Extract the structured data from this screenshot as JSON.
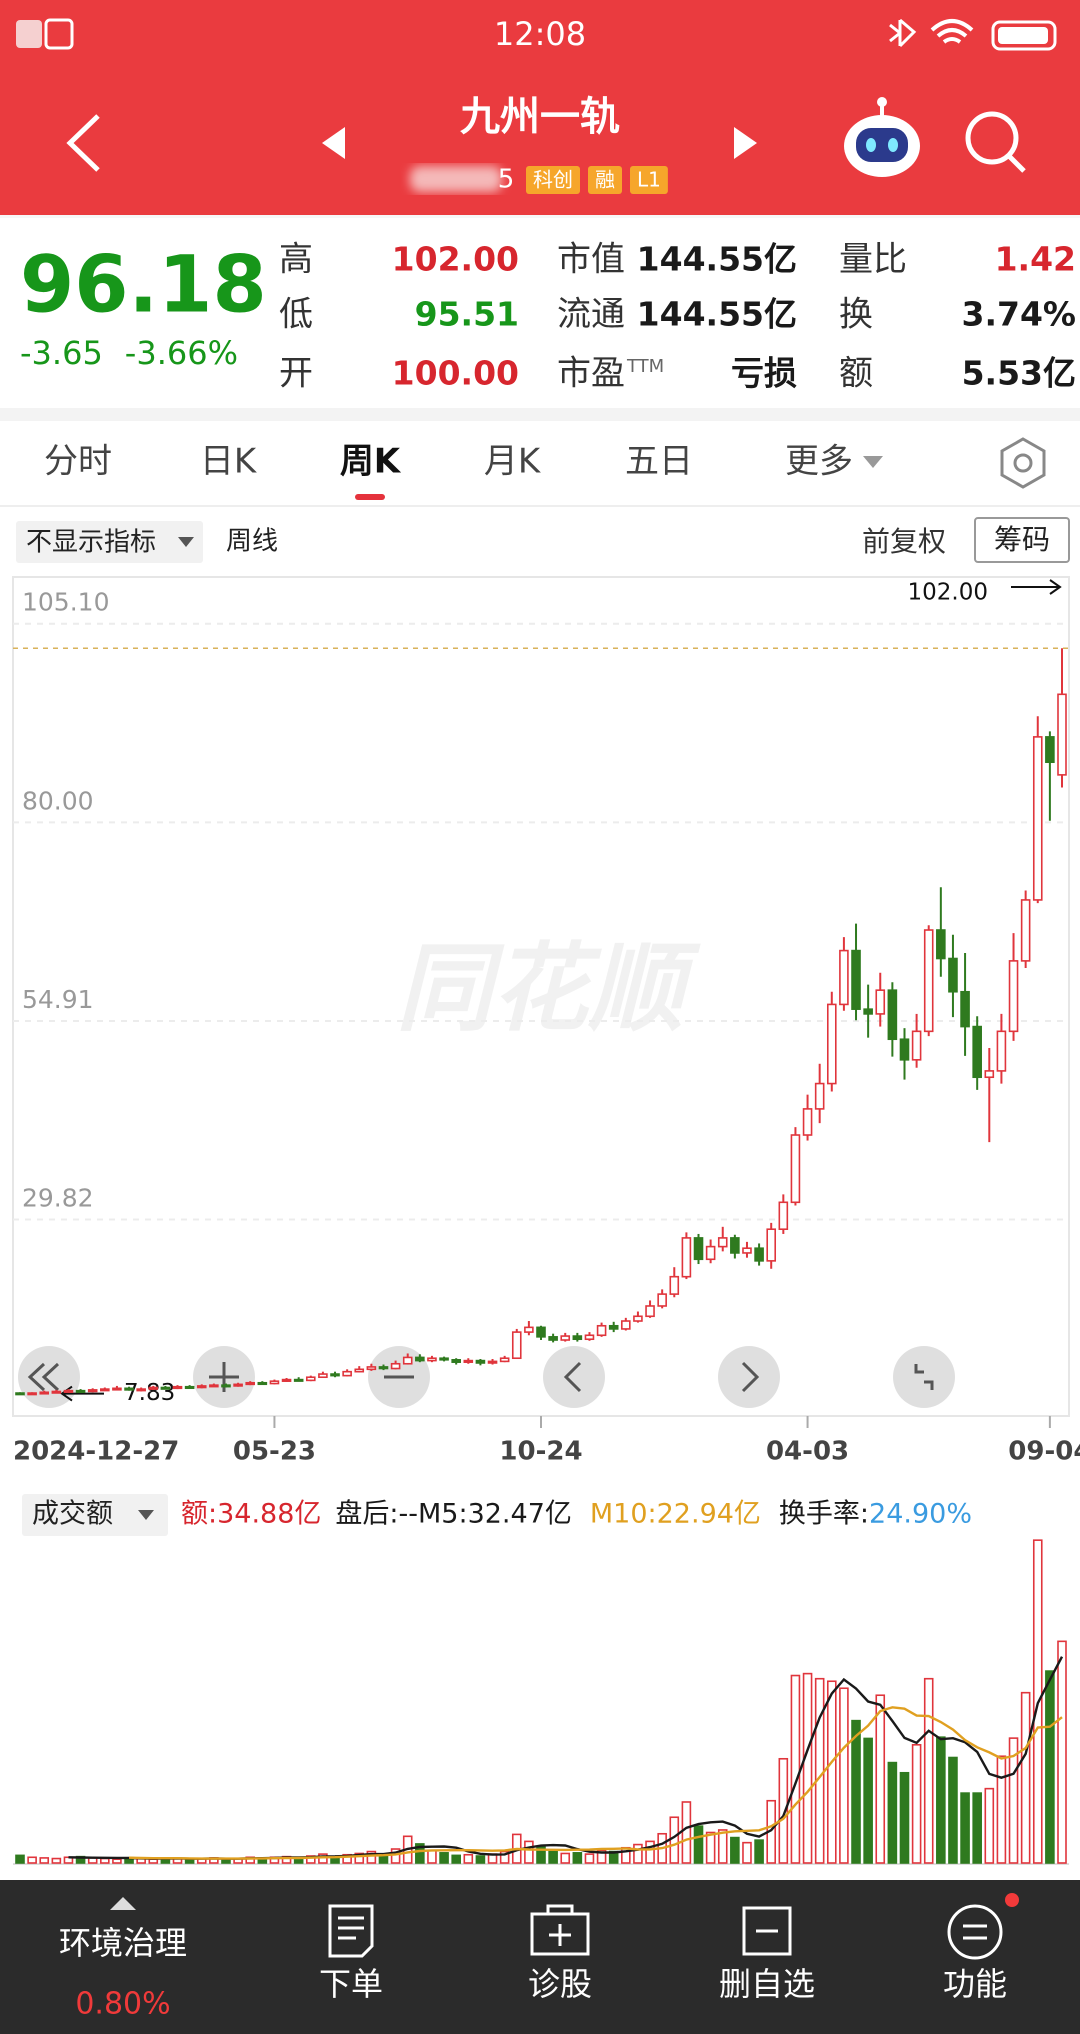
{
  "status_bar": {
    "time": "12:08"
  },
  "header": {
    "title": "九州一轨",
    "code": "5",
    "tags": [
      "科创",
      "融",
      "L1"
    ]
  },
  "quote": {
    "price": "96.18",
    "change": "-3.65",
    "change_pct": "-3.66%",
    "fields": [
      {
        "label": "高",
        "value": "102.00",
        "color": "#d7262e"
      },
      {
        "label": "低",
        "value": "95.51",
        "color": "#17961a"
      },
      {
        "label": "开",
        "value": "100.00",
        "color": "#d7262e"
      },
      {
        "label": "市值",
        "value": "144.55亿",
        "color": "#1a1a1a"
      },
      {
        "label": "流通",
        "value": "144.55亿",
        "color": "#1a1a1a"
      },
      {
        "label": "市盈",
        "sup": "TTM",
        "value": "亏损",
        "color": "#1a1a1a"
      },
      {
        "label": "量比",
        "value": "1.42",
        "color": "#d7262e"
      },
      {
        "label": "换",
        "value": "3.74%",
        "color": "#1a1a1a"
      },
      {
        "label": "额",
        "value": "5.53亿",
        "color": "#1a1a1a"
      }
    ]
  },
  "tabs": [
    "分时",
    "日K",
    "周K",
    "月K",
    "五日",
    "更多"
  ],
  "active_tab": "周K",
  "toolbar": {
    "indicator": "不显示指标",
    "period": "周线",
    "adjust": "前复权",
    "chips": "筹码"
  },
  "chart_data": [
    {
      "type": "candlestick",
      "watermark": "同花顺",
      "up_color": "#e0353c",
      "down_color": "#2f7a1f",
      "ylim": [
        5,
        111
      ],
      "yticks": [
        {
          "value": 105.1,
          "label": "105.10"
        },
        {
          "value": 80,
          "label": "80.00"
        },
        54.91,
        29.82
      ],
      "annotations": [
        {
          "value": 102,
          "label": "102.00"
        },
        {
          "value": 7.83,
          "label": "7.83"
        }
      ],
      "categories": [
        "2024-12-27",
        null,
        null,
        null,
        null,
        null,
        null,
        null,
        null,
        null,
        null,
        null,
        null,
        null,
        null,
        null,
        null,
        null,
        null,
        null,
        null,
        "05-23",
        null,
        null,
        null,
        null,
        null,
        null,
        null,
        null,
        null,
        null,
        null,
        null,
        null,
        null,
        null,
        null,
        null,
        null,
        null,
        null,
        null,
        "10-24",
        null,
        null,
        null,
        null,
        null,
        null,
        null,
        null,
        null,
        null,
        null,
        null,
        null,
        null,
        null,
        null,
        null,
        null,
        null,
        null,
        null,
        "04-03",
        null,
        null,
        null,
        null,
        null,
        null,
        null,
        null,
        null,
        null,
        null,
        null,
        null,
        null,
        null,
        null,
        null,
        null,
        null,
        "09-04"
      ],
      "ohlc": [
        [
          7.9,
          7.8,
          8.0,
          7.7
        ],
        [
          7.8,
          7.9,
          8.0,
          7.7
        ],
        [
          7.9,
          8.0,
          8.2,
          7.8
        ],
        [
          8.0,
          8.1,
          8.3,
          7.9
        ],
        [
          8.1,
          8.2,
          8.4,
          8.0
        ],
        [
          8.2,
          8.1,
          8.4,
          7.9
        ],
        [
          8.1,
          8.3,
          8.5,
          8.0
        ],
        [
          8.3,
          8.4,
          8.6,
          8.2
        ],
        [
          8.4,
          8.5,
          8.8,
          8.3
        ],
        [
          8.5,
          8.3,
          8.7,
          8.2
        ],
        [
          8.3,
          8.4,
          8.6,
          8.1
        ],
        [
          8.4,
          8.6,
          8.8,
          8.3
        ],
        [
          8.6,
          8.5,
          8.8,
          8.4
        ],
        [
          8.5,
          8.7,
          8.9,
          8.4
        ],
        [
          8.7,
          8.6,
          8.9,
          8.5
        ],
        [
          8.6,
          8.8,
          9.0,
          8.5
        ],
        [
          8.8,
          8.9,
          9.1,
          8.7
        ],
        [
          8.9,
          8.8,
          9.1,
          8.6
        ],
        [
          8.8,
          9.0,
          9.2,
          8.7
        ],
        [
          9.0,
          9.2,
          9.4,
          8.9
        ],
        [
          9.2,
          9.1,
          9.4,
          9.0
        ],
        [
          9.1,
          9.4,
          9.6,
          9.0
        ],
        [
          9.4,
          9.6,
          9.8,
          9.3
        ],
        [
          9.6,
          9.5,
          9.9,
          9.4
        ],
        [
          9.5,
          9.9,
          10.1,
          9.4
        ],
        [
          9.9,
          10.3,
          10.6,
          9.8
        ],
        [
          10.3,
          10.1,
          10.6,
          9.9
        ],
        [
          10.1,
          10.6,
          10.9,
          10.0
        ],
        [
          10.6,
          10.9,
          11.3,
          10.5
        ],
        [
          10.9,
          11.2,
          11.6,
          10.7
        ],
        [
          11.2,
          11.0,
          11.5,
          10.8
        ],
        [
          11.0,
          11.6,
          12.0,
          10.9
        ],
        [
          11.6,
          12.4,
          12.9,
          11.5
        ],
        [
          12.4,
          12.0,
          12.8,
          11.8
        ],
        [
          12.0,
          12.3,
          12.6,
          11.8
        ],
        [
          12.3,
          12.1,
          12.5,
          11.9
        ],
        [
          12.1,
          11.8,
          12.3,
          11.5
        ],
        [
          11.8,
          12.0,
          12.3,
          11.6
        ],
        [
          12.0,
          11.7,
          12.2,
          11.4
        ],
        [
          11.7,
          11.9,
          12.2,
          11.5
        ],
        [
          11.9,
          12.3,
          12.6,
          11.8
        ],
        [
          12.3,
          15.6,
          16.0,
          12.2
        ],
        [
          15.6,
          16.2,
          17.0,
          15.2
        ],
        [
          16.2,
          15.0,
          16.4,
          14.6
        ],
        [
          15.0,
          14.6,
          15.4,
          14.3
        ],
        [
          14.6,
          15.1,
          15.5,
          14.4
        ],
        [
          15.1,
          14.7,
          15.5,
          14.4
        ],
        [
          14.7,
          15.2,
          15.6,
          14.5
        ],
        [
          15.2,
          16.4,
          16.8,
          15.0
        ],
        [
          16.4,
          16.0,
          16.9,
          15.6
        ],
        [
          16.0,
          17.0,
          17.4,
          15.8
        ],
        [
          17.0,
          17.6,
          18.2,
          16.8
        ],
        [
          17.6,
          18.9,
          19.6,
          17.4
        ],
        [
          18.9,
          20.4,
          21.0,
          18.6
        ],
        [
          20.4,
          22.6,
          23.8,
          20.0
        ],
        [
          22.6,
          27.5,
          28.2,
          22.3
        ],
        [
          27.5,
          24.8,
          28.0,
          24.2
        ],
        [
          24.8,
          26.4,
          27.3,
          24.3
        ],
        [
          26.4,
          27.5,
          28.9,
          25.8
        ],
        [
          27.5,
          25.6,
          27.9,
          24.9
        ],
        [
          25.6,
          26.2,
          27.0,
          25.0
        ],
        [
          26.2,
          24.6,
          26.8,
          24.0
        ],
        [
          24.6,
          28.6,
          29.4,
          23.6
        ],
        [
          28.6,
          32.0,
          33.0,
          28.0
        ],
        [
          32.0,
          40.5,
          41.5,
          31.6
        ],
        [
          40.5,
          43.8,
          45.6,
          39.8
        ],
        [
          43.8,
          47.0,
          49.5,
          42.0
        ],
        [
          47.0,
          57.0,
          58.6,
          46.0
        ],
        [
          57.0,
          63.8,
          65.5,
          56.2
        ],
        [
          63.8,
          56.4,
          67.2,
          55.0
        ],
        [
          56.4,
          55.8,
          59.5,
          52.8
        ],
        [
          55.8,
          58.8,
          61.0,
          54.2
        ],
        [
          58.8,
          52.6,
          59.8,
          50.4
        ],
        [
          52.6,
          50.0,
          54.0,
          47.5
        ],
        [
          50.0,
          53.6,
          55.8,
          49.0
        ],
        [
          53.6,
          66.4,
          67.0,
          53.0
        ],
        [
          66.4,
          62.8,
          71.8,
          60.5
        ],
        [
          62.8,
          58.6,
          65.8,
          55.4
        ],
        [
          58.6,
          54.2,
          63.5,
          50.5
        ],
        [
          54.2,
          47.8,
          55.5,
          46.2
        ],
        [
          47.8,
          48.6,
          51.5,
          39.6
        ],
        [
          48.6,
          53.6,
          55.8,
          47.0
        ],
        [
          53.6,
          62.5,
          66.0,
          52.4
        ],
        [
          62.5,
          70.2,
          71.4,
          61.6
        ],
        [
          70.2,
          90.8,
          93.4,
          69.8
        ],
        [
          90.8,
          87.6,
          91.5,
          80.2
        ],
        [
          86.0,
          96.18,
          102.0,
          84.4
        ]
      ]
    },
    {
      "type": "bar",
      "title": "成交额",
      "ylim": [
        0,
        52.4
      ],
      "readouts": [
        {
          "text": "额:34.88亿",
          "color": "#d7262e"
        },
        {
          "text": "盘后:--",
          "color": "#1a1a1a"
        },
        {
          "text": "M5:32.47亿",
          "color": "#1a1a1a"
        },
        {
          "text": "M10:22.94亿",
          "color": "#e0a020"
        },
        {
          "text": "换手率:",
          "color": "#1a1a1a"
        },
        {
          "text": "24.90%",
          "color": "#3a9be0"
        }
      ],
      "values": [
        1.2,
        0.9,
        0.8,
        0.7,
        0.9,
        1.0,
        0.8,
        0.7,
        0.6,
        0.8,
        0.7,
        0.6,
        0.8,
        0.7,
        0.6,
        0.7,
        0.8,
        0.6,
        0.7,
        0.9,
        0.8,
        0.9,
        1.0,
        0.8,
        1.1,
        1.4,
        1.0,
        1.3,
        1.5,
        1.8,
        1.4,
        2.2,
        4.2,
        3.0,
        2.0,
        1.6,
        1.2,
        1.3,
        1.1,
        1.4,
        1.8,
        4.5,
        3.4,
        2.6,
        1.8,
        1.5,
        1.6,
        1.4,
        2.0,
        1.8,
        2.4,
        2.9,
        3.4,
        4.6,
        7.2,
        9.6,
        5.8,
        4.8,
        5.2,
        4.0,
        3.2,
        3.6,
        9.8,
        16.4,
        29.5,
        29.8,
        29.0,
        28.6,
        27.5,
        22.4,
        19.6,
        26.4,
        15.8,
        14.2,
        18.6,
        29.0,
        19.8,
        16.6,
        11.0,
        11.0,
        11.7,
        16.8,
        19.65,
        26.8,
        50.8,
        30.2,
        34.88
      ],
      "series": [
        {
          "name": "M5",
          "color": "#1a1a1a",
          "values": [
            null,
            null,
            null,
            null,
            0.9,
            0.86,
            0.84,
            0.82,
            0.8,
            0.78,
            0.72,
            0.68,
            0.7,
            0.72,
            0.68,
            0.68,
            0.72,
            0.68,
            0.68,
            0.74,
            0.76,
            0.78,
            0.86,
            0.88,
            0.92,
            1.04,
            1.06,
            1.12,
            1.26,
            1.4,
            1.4,
            1.64,
            2.22,
            2.52,
            2.56,
            2.6,
            2.4,
            1.82,
            1.44,
            1.32,
            1.36,
            2.02,
            2.44,
            2.74,
            2.82,
            2.76,
            2.18,
            1.78,
            1.66,
            1.66,
            1.84,
            2.1,
            2.5,
            3.02,
            4.1,
            5.54,
            6.12,
            6.4,
            6.52,
            5.88,
            4.6,
            4.16,
            5.16,
            7.4,
            12.5,
            17.82,
            22.9,
            26.66,
            28.88,
            27.46,
            25.42,
            24.9,
            22.34,
            19.68,
            18.92,
            20.8,
            19.48,
            19.64,
            19.0,
            17.48,
            14.02,
            13.42,
            14.03,
            17.19,
            25.15,
            28.85,
            32.47
          ]
        },
        {
          "name": "M10",
          "color": "#e0a020",
          "values": [
            null,
            null,
            null,
            null,
            null,
            null,
            null,
            null,
            null,
            0.84,
            0.79,
            0.76,
            0.76,
            0.76,
            0.73,
            0.7,
            0.7,
            0.69,
            0.7,
            0.71,
            0.72,
            0.75,
            0.77,
            0.78,
            0.83,
            0.9,
            0.92,
            0.99,
            1.07,
            1.16,
            1.22,
            1.35,
            1.67,
            1.89,
            1.98,
            2.0,
            2.02,
            2.02,
            1.98,
            1.94,
            1.98,
            2.21,
            2.13,
            2.09,
            2.07,
            2.06,
            2.1,
            2.11,
            2.2,
            2.24,
            2.3,
            2.14,
            2.14,
            2.34,
            2.88,
            3.69,
            4.11,
            4.45,
            4.77,
            4.99,
            5.07,
            5.14,
            5.78,
            6.96,
            9.19,
            11.21,
            13.53,
            15.91,
            18.14,
            19.98,
            21.62,
            23.9,
            24.5,
            24.28,
            23.19,
            23.11,
            22.19,
            20.99,
            19.34,
            18.2,
            17.41,
            16.45,
            16.84,
            18.1,
            21.32,
            21.44,
            22.94
          ]
        }
      ]
    }
  ],
  "nav": [
    {
      "label": "环境治理",
      "sub": "0.80%"
    },
    {
      "label": "下单"
    },
    {
      "label": "诊股"
    },
    {
      "label": "删自选"
    },
    {
      "label": "功能"
    }
  ]
}
